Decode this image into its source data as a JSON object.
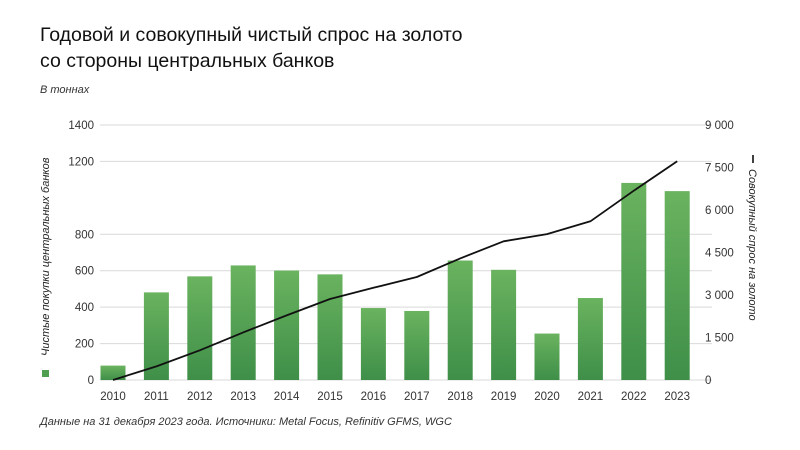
{
  "title_line1": "Годовой и совокупный чистый спрос на золото",
  "title_line2": "со стороны центральных банков",
  "units_note": "В тоннах",
  "footnote": "Данные на 31 декабря 2023 года. Источники: Metal Focus, Refinitiv GFMS, WGC",
  "colors": {
    "bar_top": "#6ab35f",
    "bar_bottom": "#3f8f49",
    "line": "#111111",
    "grid": "#d9d9d9",
    "text": "#333333"
  },
  "chart_data": {
    "type": "bar",
    "categories": [
      "2010",
      "2011",
      "2012",
      "2013",
      "2014",
      "2015",
      "2016",
      "2017",
      "2018",
      "2019",
      "2020",
      "2021",
      "2022",
      "2023"
    ],
    "series": [
      {
        "name": "Чистые покупки центральных банков",
        "type": "bar",
        "axis": "left",
        "values": [
          79,
          481,
          569,
          629,
          601,
          580,
          395,
          379,
          656,
          605,
          255,
          450,
          1082,
          1037
        ]
      },
      {
        "name": "Совокупный спрос на золото",
        "type": "line",
        "axis": "right",
        "values": [
          0,
          481,
          1050,
          1679,
          2280,
          2860,
          3255,
          3634,
          4290,
          4895,
          5150,
          5600,
          6682,
          7719
        ]
      }
    ],
    "ylim_left": [
      0,
      1400
    ],
    "ylim_right": [
      0,
      9000
    ],
    "yticks_left": [
      "0",
      "200",
      "400",
      "600",
      "800",
      "1200",
      "1400"
    ],
    "yticks_left_values": [
      0,
      200,
      400,
      600,
      800,
      1200,
      1400
    ],
    "yticks_right": [
      "0",
      "1 500",
      "3 000",
      "4 500",
      "6 000",
      "7 500",
      "9 000"
    ],
    "yticks_right_values": [
      0,
      1500,
      3000,
      4500,
      6000,
      7500,
      9000
    ],
    "ylabel_left": "Чистые покупки центральных банков",
    "ylabel_right": "Совокупный спрос на золото",
    "grid": true
  }
}
